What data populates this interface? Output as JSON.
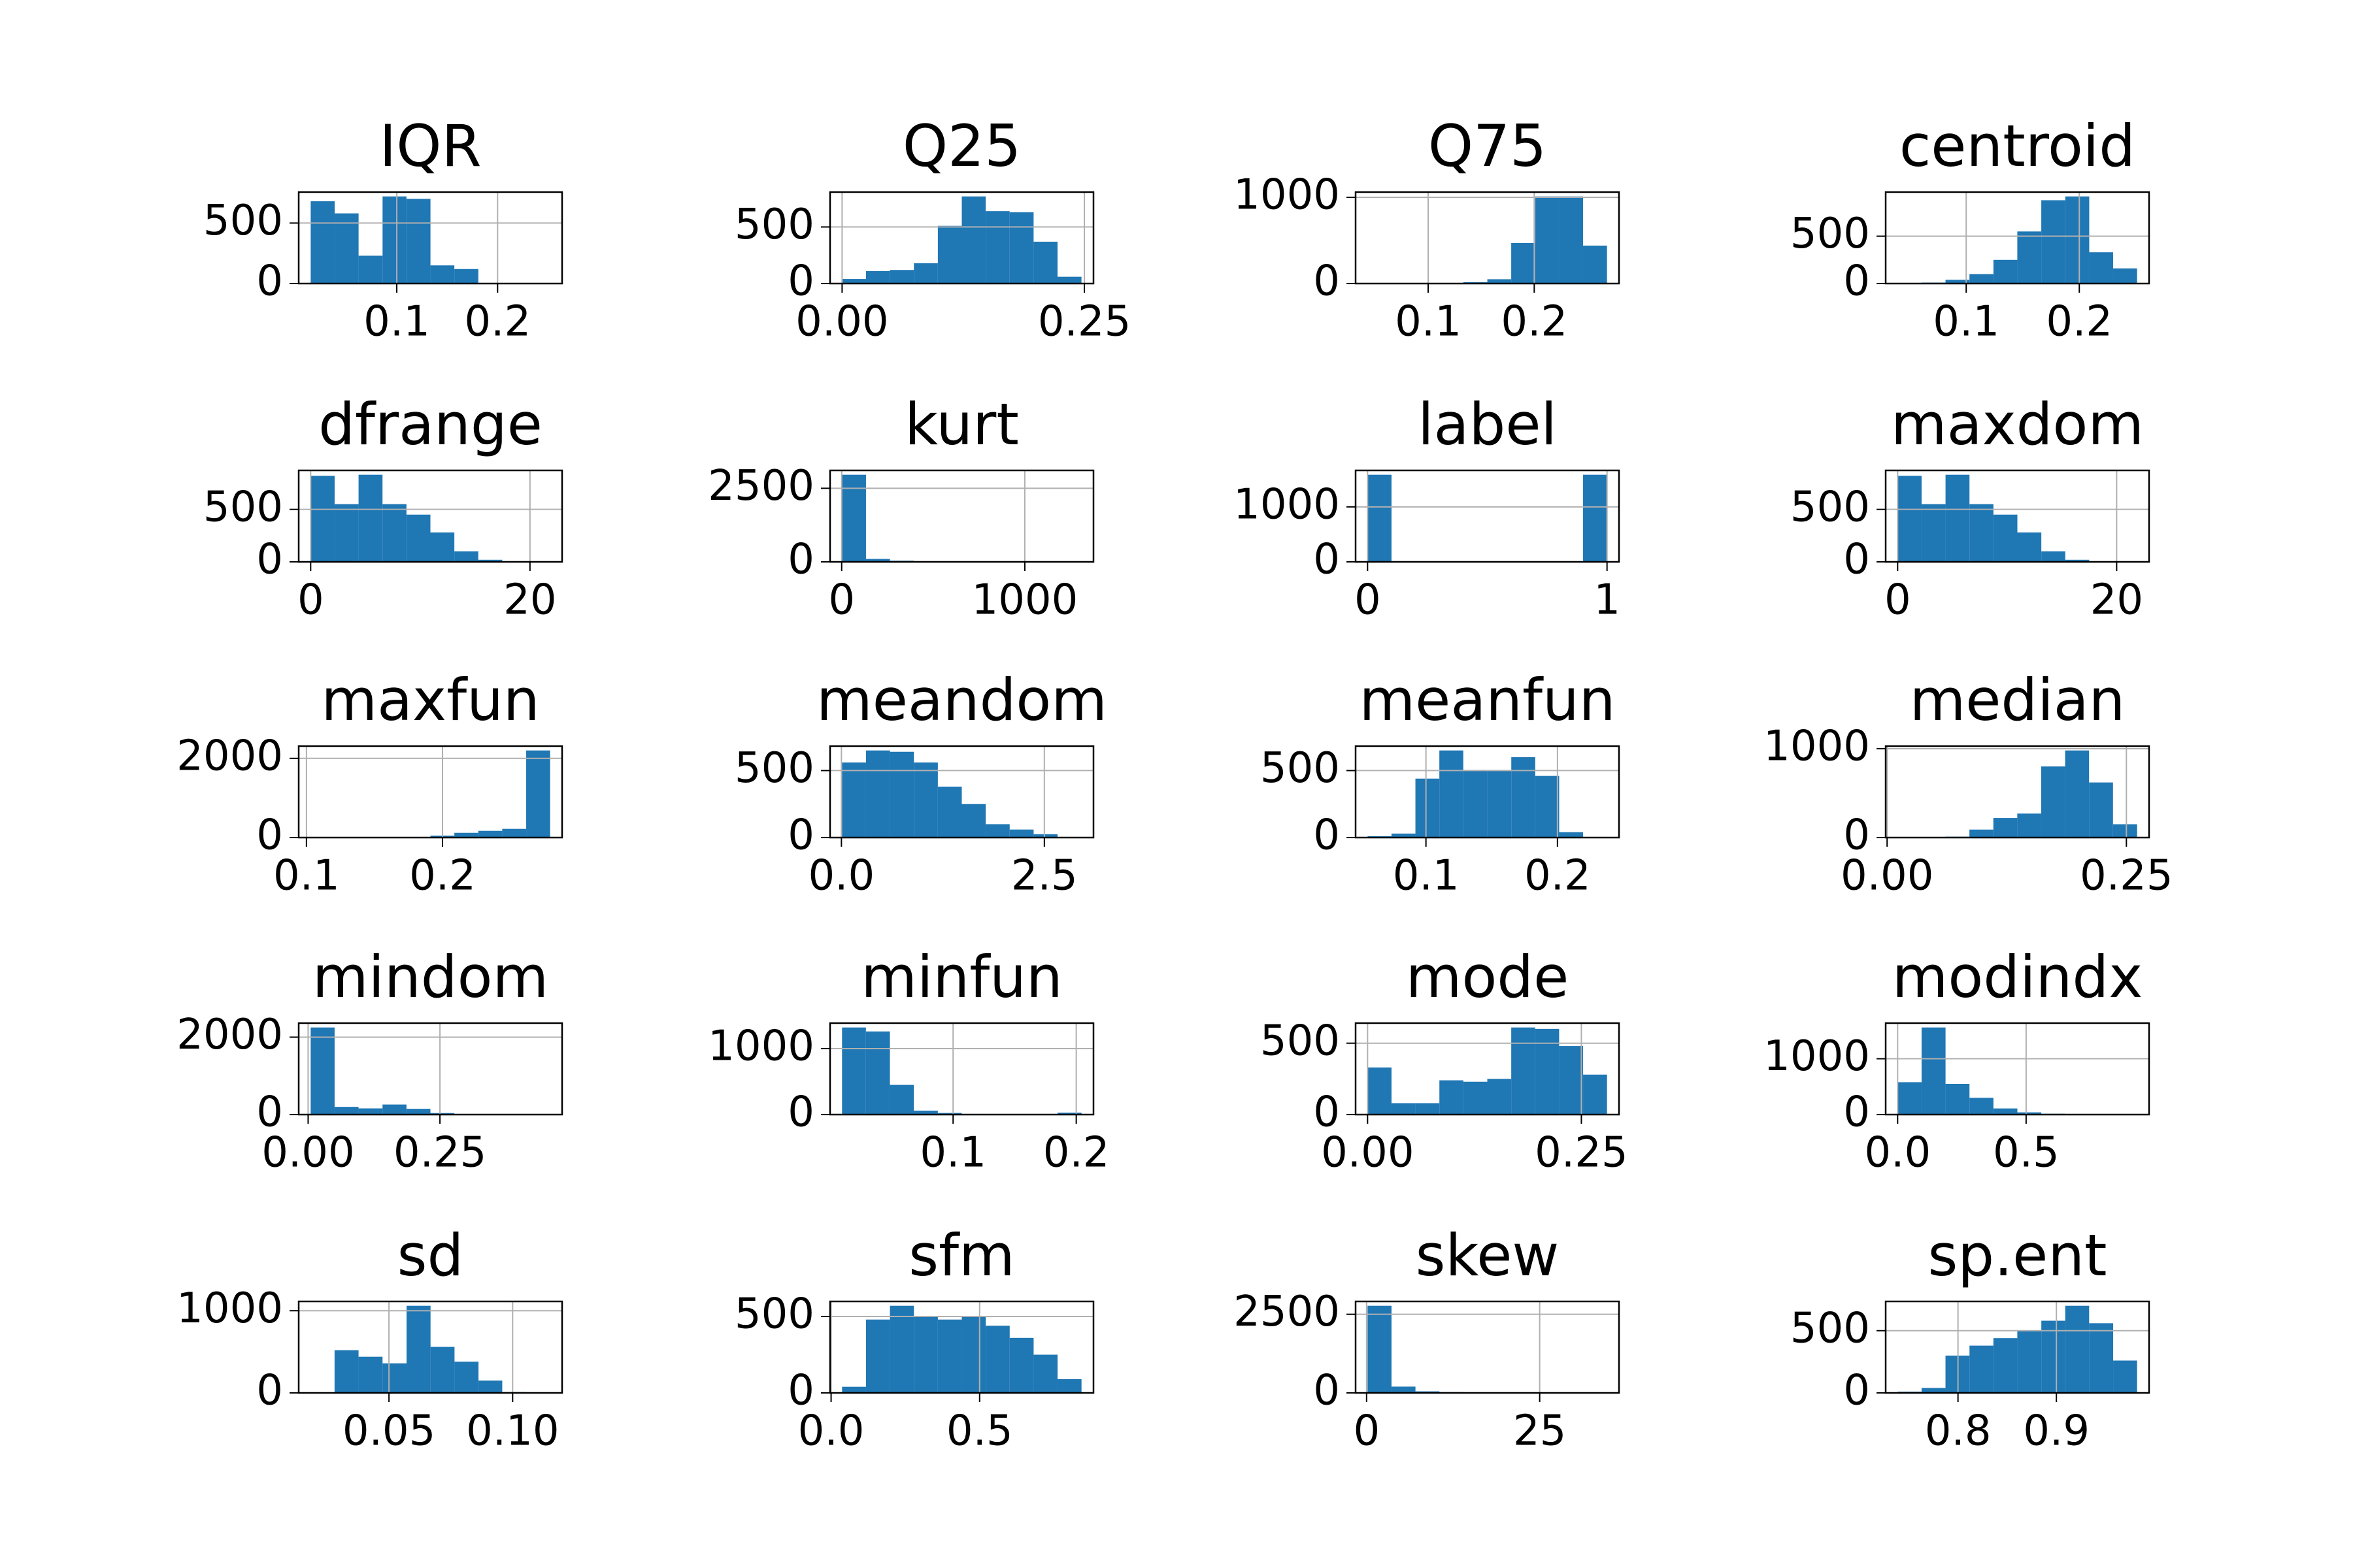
{
  "chart_data": [
    {
      "type": "histogram",
      "title": "IQR",
      "color": "#1f77b4",
      "grid": true,
      "bins": [
        0.0146,
        0.0384,
        0.0621,
        0.0859,
        0.1096,
        0.1334,
        0.1571,
        0.1809,
        0.2046,
        0.2284,
        0.2521
      ],
      "values": [
        680,
        580,
        230,
        720,
        700,
        150,
        120,
        5,
        2,
        1
      ],
      "xlim": [
        0.0027,
        0.264
      ],
      "xticks": [
        0.1,
        0.2
      ],
      "ylim": [
        0,
        756
      ],
      "yticks": [
        0,
        500
      ]
    },
    {
      "type": "histogram",
      "title": "Q25",
      "color": "#1f77b4",
      "grid": true,
      "bins": [
        0,
        0.0247,
        0.0494,
        0.0741,
        0.0988,
        0.1235,
        0.1482,
        0.1729,
        0.1976,
        0.2223,
        0.247
      ],
      "values": [
        40,
        110,
        120,
        180,
        510,
        770,
        640,
        630,
        370,
        60
      ],
      "xlim": [
        -0.0124,
        0.2594
      ],
      "xticks": [
        {
          "value": 0,
          "label": "0.00"
        },
        {
          "value": 0.25,
          "label": "0.25"
        }
      ],
      "ylim": [
        0,
        808.5
      ],
      "yticks": [
        0,
        500
      ]
    },
    {
      "type": "histogram",
      "title": "Q75",
      "color": "#1f77b4",
      "grid": true,
      "bins": [
        0.0429,
        0.0655,
        0.088,
        0.1106,
        0.1332,
        0.1558,
        0.1783,
        0.2009,
        0.2235,
        0.246,
        0.2686
      ],
      "values": [
        2,
        2,
        3,
        5,
        15,
        50,
        470,
        1010,
        1010,
        440
      ],
      "xlim": [
        0.0316,
        0.2799
      ],
      "xticks": [
        0.1,
        0.2
      ],
      "ylim": [
        0,
        1060.5
      ],
      "yticks": [
        0,
        1000
      ]
    },
    {
      "type": "histogram",
      "title": "centroid",
      "color": "#1f77b4",
      "grid": true,
      "bins": [
        0.0394,
        0.0606,
        0.0817,
        0.1029,
        0.1241,
        0.1452,
        0.1664,
        0.1876,
        0.2088,
        0.2299,
        0.2511
      ],
      "values": [
        3,
        10,
        40,
        100,
        250,
        550,
        880,
        920,
        330,
        160
      ],
      "xlim": [
        0.0288,
        0.2617
      ],
      "xticks": [
        0.1,
        0.2
      ],
      "ylim": [
        0,
        966
      ],
      "yticks": [
        0,
        500
      ]
    },
    {
      "type": "histogram",
      "title": "dfrange",
      "color": "#1f77b4",
      "grid": true,
      "bins": [
        0,
        2.184,
        4.368,
        6.552,
        8.736,
        10.92,
        13.104,
        15.288,
        17.472,
        19.656,
        21.84
      ],
      "values": [
        820,
        550,
        830,
        550,
        450,
        280,
        100,
        20,
        5,
        2
      ],
      "xlim": [
        -1.092,
        22.932
      ],
      "xticks": [
        0,
        20
      ],
      "ylim": [
        0,
        871.5
      ],
      "yticks": [
        0,
        500
      ]
    },
    {
      "type": "histogram",
      "title": "kurt",
      "color": "#1f77b4",
      "grid": true,
      "bins": [
        2.07,
        132.82,
        263.57,
        394.33,
        525.08,
        655.83,
        786.58,
        917.33,
        1048.09,
        1178.84,
        1309.59
      ],
      "values": [
        2960,
        100,
        40,
        20,
        15,
        10,
        8,
        5,
        5,
        5
      ],
      "xlim": [
        -63.3,
        1375
      ],
      "xticks": [
        0,
        1000
      ],
      "ylim": [
        0,
        3108
      ],
      "yticks": [
        0,
        2500
      ]
    },
    {
      "type": "histogram",
      "title": "label",
      "color": "#1f77b4",
      "grid": true,
      "bins": [
        0,
        0.1,
        0.2,
        0.3,
        0.4,
        0.5,
        0.6,
        0.7,
        0.8,
        0.9,
        1
      ],
      "values": [
        1584,
        0,
        0,
        0,
        0,
        0,
        0,
        0,
        0,
        1584
      ],
      "xlim": [
        -0.05,
        1.05
      ],
      "xticks": [
        0,
        1
      ],
      "ylim": [
        0,
        1663.2
      ],
      "yticks": [
        0,
        1000
      ]
    },
    {
      "type": "histogram",
      "title": "maxdom",
      "color": "#1f77b4",
      "grid": true,
      "bins": [
        0,
        2.1867,
        4.3734,
        6.5601,
        8.7468,
        10.9335,
        13.1202,
        15.3069,
        17.4936,
        19.6803,
        21.867
      ],
      "values": [
        820,
        550,
        830,
        550,
        450,
        280,
        100,
        20,
        5,
        2
      ],
      "xlim": [
        -1.093,
        22.96
      ],
      "xticks": [
        0,
        20
      ],
      "ylim": [
        0,
        871.5
      ],
      "yticks": [
        0,
        500
      ]
    },
    {
      "type": "histogram",
      "title": "maxfun",
      "color": "#1f77b4",
      "grid": true,
      "bins": [
        0.1031,
        0.1207,
        0.1383,
        0.1559,
        0.1735,
        0.1911,
        0.2087,
        0.2263,
        0.2439,
        0.2615,
        0.2791
      ],
      "values": [
        10,
        2,
        2,
        5,
        10,
        50,
        120,
        170,
        220,
        2200
      ],
      "xlim": [
        0.0943,
        0.2879
      ],
      "xticks": [
        0.1,
        0.2
      ],
      "ylim": [
        0,
        2310
      ],
      "yticks": [
        0,
        2000
      ]
    },
    {
      "type": "histogram",
      "title": "meandom",
      "color": "#1f77b4",
      "grid": true,
      "bins": [
        0.0078,
        0.3028,
        0.5978,
        0.8928,
        1.1878,
        1.4828,
        1.7778,
        2.0728,
        2.3678,
        2.6628,
        2.9578
      ],
      "values": [
        560,
        650,
        640,
        560,
        380,
        250,
        100,
        60,
        25,
        5
      ],
      "xlim": [
        -0.1397,
        3.1053
      ],
      "xticks": [
        {
          "value": 0,
          "label": "0.0"
        },
        {
          "value": 2.5,
          "label": "2.5"
        }
      ],
      "ylim": [
        0,
        682.5
      ],
      "yticks": [
        0,
        500
      ]
    },
    {
      "type": "histogram",
      "title": "meanfun",
      "color": "#1f77b4",
      "grid": true,
      "bins": [
        0.0556,
        0.0738,
        0.092,
        0.1102,
        0.1284,
        0.1467,
        0.1649,
        0.1831,
        0.2013,
        0.2195,
        0.2377
      ],
      "values": [
        10,
        30,
        440,
        650,
        500,
        500,
        600,
        460,
        40,
        5
      ],
      "xlim": [
        0.0465,
        0.2468
      ],
      "xticks": [
        0.1,
        0.2
      ],
      "ylim": [
        0,
        682.5
      ],
      "yticks": [
        0,
        500
      ]
    },
    {
      "type": "histogram",
      "title": "median",
      "color": "#1f77b4",
      "grid": true,
      "bins": [
        0.011,
        0.036,
        0.061,
        0.086,
        0.111,
        0.136,
        0.161,
        0.186,
        0.211,
        0.236,
        0.2612
      ],
      "values": [
        2,
        3,
        10,
        90,
        220,
        270,
        800,
        980,
        620,
        150
      ],
      "xlim": [
        -0.0015,
        0.2737
      ],
      "xticks": [
        {
          "value": 0,
          "label": "0.00"
        },
        {
          "value": 0.25,
          "label": "0.25"
        }
      ],
      "ylim": [
        0,
        1029
      ],
      "yticks": [
        0,
        1000
      ]
    },
    {
      "type": "histogram",
      "title": "mindom",
      "color": "#1f77b4",
      "grid": true,
      "bins": [
        0.0048,
        0.0502,
        0.0956,
        0.1411,
        0.1865,
        0.2319,
        0.2773,
        0.3227,
        0.3682,
        0.4136,
        0.459
      ],
      "values": [
        2250,
        200,
        160,
        260,
        150,
        40,
        10,
        5,
        5,
        3
      ],
      "xlim": [
        -0.0179,
        0.4817
      ],
      "xticks": [
        {
          "value": 0,
          "label": "0.00"
        },
        {
          "value": 0.25,
          "label": "0.25"
        }
      ],
      "ylim": [
        0,
        2362.5
      ],
      "yticks": [
        0,
        2000
      ]
    },
    {
      "type": "histogram",
      "title": "minfun",
      "color": "#1f77b4",
      "grid": true,
      "bins": [
        0.0098,
        0.0292,
        0.0487,
        0.0681,
        0.0876,
        0.107,
        0.1265,
        0.1459,
        0.1654,
        0.1848,
        0.2043
      ],
      "values": [
        1320,
        1260,
        450,
        60,
        25,
        10,
        5,
        5,
        3,
        30
      ],
      "xlim": [
        0.0001,
        0.214
      ],
      "xticks": [
        0.1,
        0.2
      ],
      "ylim": [
        0,
        1386
      ],
      "yticks": [
        0,
        1000
      ]
    },
    {
      "type": "histogram",
      "title": "mode",
      "color": "#1f77b4",
      "grid": true,
      "bins": [
        0,
        0.028,
        0.056,
        0.084,
        0.112,
        0.14,
        0.168,
        0.196,
        0.224,
        0.252,
        0.28
      ],
      "values": [
        330,
        80,
        80,
        240,
        230,
        250,
        610,
        600,
        480,
        280
      ],
      "xlim": [
        -0.014,
        0.294
      ],
      "xticks": [
        {
          "value": 0,
          "label": "0.00"
        },
        {
          "value": 0.25,
          "label": "0.25"
        }
      ],
      "ylim": [
        0,
        640.5
      ],
      "yticks": [
        0,
        500
      ]
    },
    {
      "type": "histogram",
      "title": "modindx",
      "color": "#1f77b4",
      "grid": true,
      "bins": [
        0,
        0.0932,
        0.1864,
        0.2796,
        0.3728,
        0.466,
        0.5592,
        0.6524,
        0.7456,
        0.8388,
        0.932
      ],
      "values": [
        580,
        1560,
        550,
        300,
        110,
        40,
        15,
        5,
        3,
        2
      ],
      "xlim": [
        -0.0466,
        0.9786
      ],
      "xticks": [
        {
          "value": 0,
          "label": "0.0"
        },
        {
          "value": 0.5,
          "label": "0.5"
        }
      ],
      "ylim": [
        0,
        1638
      ],
      "yticks": [
        0,
        1000
      ]
    },
    {
      "type": "histogram",
      "title": "sd",
      "color": "#1f77b4",
      "grid": true,
      "bins": [
        0.0184,
        0.028,
        0.0377,
        0.0474,
        0.0571,
        0.0668,
        0.0765,
        0.0862,
        0.0958,
        0.1055,
        0.1152
      ],
      "values": [
        5,
        520,
        440,
        360,
        1060,
        560,
        380,
        150,
        10,
        5
      ],
      "xlim": [
        0.0135,
        0.12
      ],
      "xticks": [
        {
          "value": 0.05,
          "label": "0.05"
        },
        {
          "value": 0.1,
          "label": "0.10"
        }
      ],
      "ylim": [
        0,
        1113
      ],
      "yticks": [
        0,
        1000
      ]
    },
    {
      "type": "histogram",
      "title": "sfm",
      "color": "#1f77b4",
      "grid": true,
      "bins": [
        0.0369,
        0.1175,
        0.1981,
        0.2788,
        0.3594,
        0.44,
        0.5206,
        0.6012,
        0.6818,
        0.7624,
        0.843
      ],
      "values": [
        40,
        480,
        570,
        500,
        480,
        500,
        440,
        360,
        250,
        90
      ],
      "xlim": [
        -0.0034,
        0.8833
      ],
      "xticks": [
        {
          "value": 0,
          "label": "0.0"
        },
        {
          "value": 0.5,
          "label": "0.5"
        }
      ],
      "ylim": [
        0,
        598.5
      ],
      "yticks": [
        0,
        500
      ]
    },
    {
      "type": "histogram",
      "title": "skew",
      "color": "#1f77b4",
      "grid": true,
      "bins": [
        0.1418,
        3.6001,
        7.0584,
        10.5167,
        13.975,
        17.4333,
        20.8916,
        24.3499,
        27.8082,
        31.2665,
        34.7248
      ],
      "values": [
        2770,
        200,
        50,
        25,
        15,
        10,
        8,
        5,
        3,
        2
      ],
      "xlim": [
        -1.5875,
        36.454
      ],
      "xticks": [
        0,
        25
      ],
      "ylim": [
        0,
        2908.5
      ],
      "yticks": [
        0,
        2500
      ]
    },
    {
      "type": "histogram",
      "title": "sp.ent",
      "color": "#1f77b4",
      "grid": true,
      "bins": [
        0.7387,
        0.763,
        0.7873,
        0.8117,
        0.836,
        0.8603,
        0.8847,
        0.909,
        0.9333,
        0.9577,
        0.982
      ],
      "values": [
        10,
        40,
        300,
        380,
        440,
        500,
        580,
        700,
        560,
        260
      ],
      "xlim": [
        0.7265,
        0.9942
      ],
      "xticks": [
        0.8,
        0.9
      ],
      "ylim": [
        0,
        735
      ],
      "yticks": [
        0,
        500
      ]
    }
  ]
}
